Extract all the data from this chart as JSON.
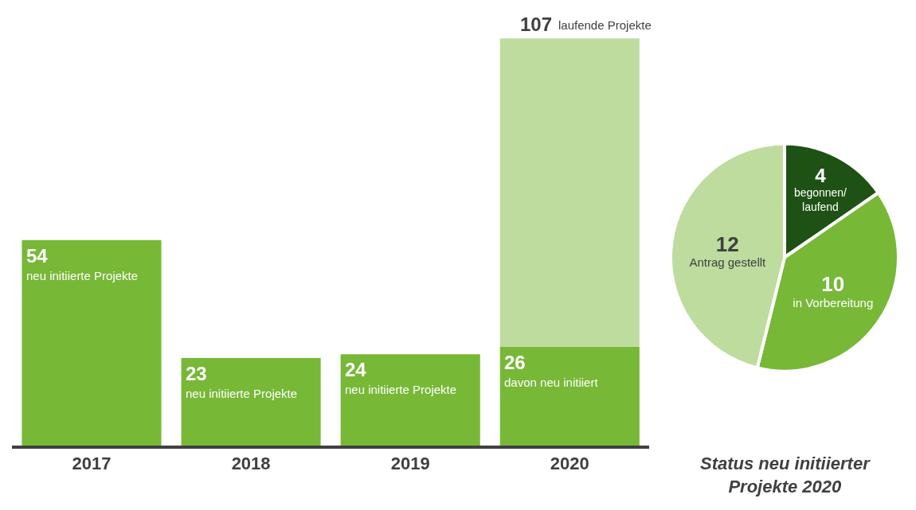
{
  "chart_data": [
    {
      "type": "bar",
      "stacked": true,
      "categories": [
        "2017",
        "2018",
        "2019",
        "2020"
      ],
      "series": [
        {
          "color": "#77b837",
          "values": [
            54,
            23,
            24,
            26
          ],
          "value_labels": [
            "54",
            "23",
            "24",
            "26"
          ]
        },
        {
          "color": "#bddc9e",
          "values": [
            null,
            null,
            null,
            81
          ]
        }
      ],
      "totals": [
        null,
        null,
        null,
        "107"
      ],
      "annotations": [
        {
          "text": "neu initiierte Projekte",
          "x": "2017",
          "y": 54
        },
        {
          "text": "neu initiierte Projekte",
          "x": "2018",
          "y": 23
        },
        {
          "text": "neu initiierte Projekte",
          "x": "2019",
          "y": 24
        },
        {
          "text": "davon neu initiiert",
          "x": "2020",
          "y": 26
        },
        {
          "text": "laufende Projekte",
          "x": "2020",
          "y": 107
        }
      ],
      "orientation": "vertical"
    },
    {
      "type": "pie",
      "title": "Status neu initiierter Projekte 2020",
      "categories": [
        "begonnen/laufend",
        "in Vorbereitung",
        "Antrag gestellt"
      ],
      "values": [
        4,
        10,
        12
      ],
      "colors": [
        "#1e5214",
        "#77b837",
        "#bddc9e"
      ],
      "data_labels": true
    }
  ]
}
